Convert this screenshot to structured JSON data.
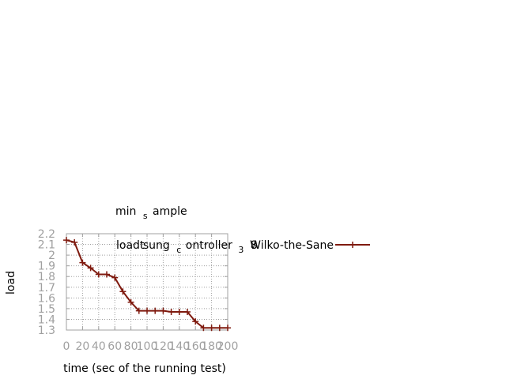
{
  "chart_data": {
    "type": "line",
    "title_main_1": "min",
    "title_sub": "s",
    "title_main_2": "ample",
    "xlabel": "time (sec of the running test)",
    "ylabel": "load",
    "xlim": [
      0,
      200
    ],
    "ylim": [
      1.3,
      2.2
    ],
    "xticks": [
      0,
      20,
      40,
      60,
      80,
      100,
      120,
      140,
      160,
      180,
      200
    ],
    "yticks": [
      1.3,
      1.4,
      1.5,
      1.6,
      1.7,
      1.8,
      1.9,
      2,
      2.1,
      2.2
    ],
    "xtick_labels": [
      "0",
      "20",
      "40",
      "60",
      "80",
      "100",
      "120",
      "140",
      "160",
      "180",
      "200"
    ],
    "ytick_labels": [
      "1.3",
      "1.4",
      "1.5",
      "1.6",
      "1.7",
      "1.8",
      "1.9",
      "2",
      "2.1",
      "2.2"
    ],
    "grid": true,
    "legend": {
      "position": "top-right",
      "part1": "loadt",
      "part2": "sung",
      "part3": "c",
      "part4": "ontroller",
      "part5": "3",
      "part6": "8",
      "part7": "Wilko-the-Sane"
    },
    "series": [
      {
        "color": "#7f1a0f",
        "x": [
          0,
          10,
          20,
          30,
          40,
          50,
          60,
          70,
          80,
          90,
          100,
          110,
          120,
          130,
          140,
          150,
          160,
          170,
          180,
          190,
          200
        ],
        "y": [
          2.14,
          2.12,
          1.93,
          1.88,
          1.82,
          1.82,
          1.79,
          1.66,
          1.56,
          1.48,
          1.48,
          1.48,
          1.48,
          1.47,
          1.47,
          1.47,
          1.38,
          1.32,
          1.32,
          1.32,
          1.32
        ]
      }
    ]
  }
}
